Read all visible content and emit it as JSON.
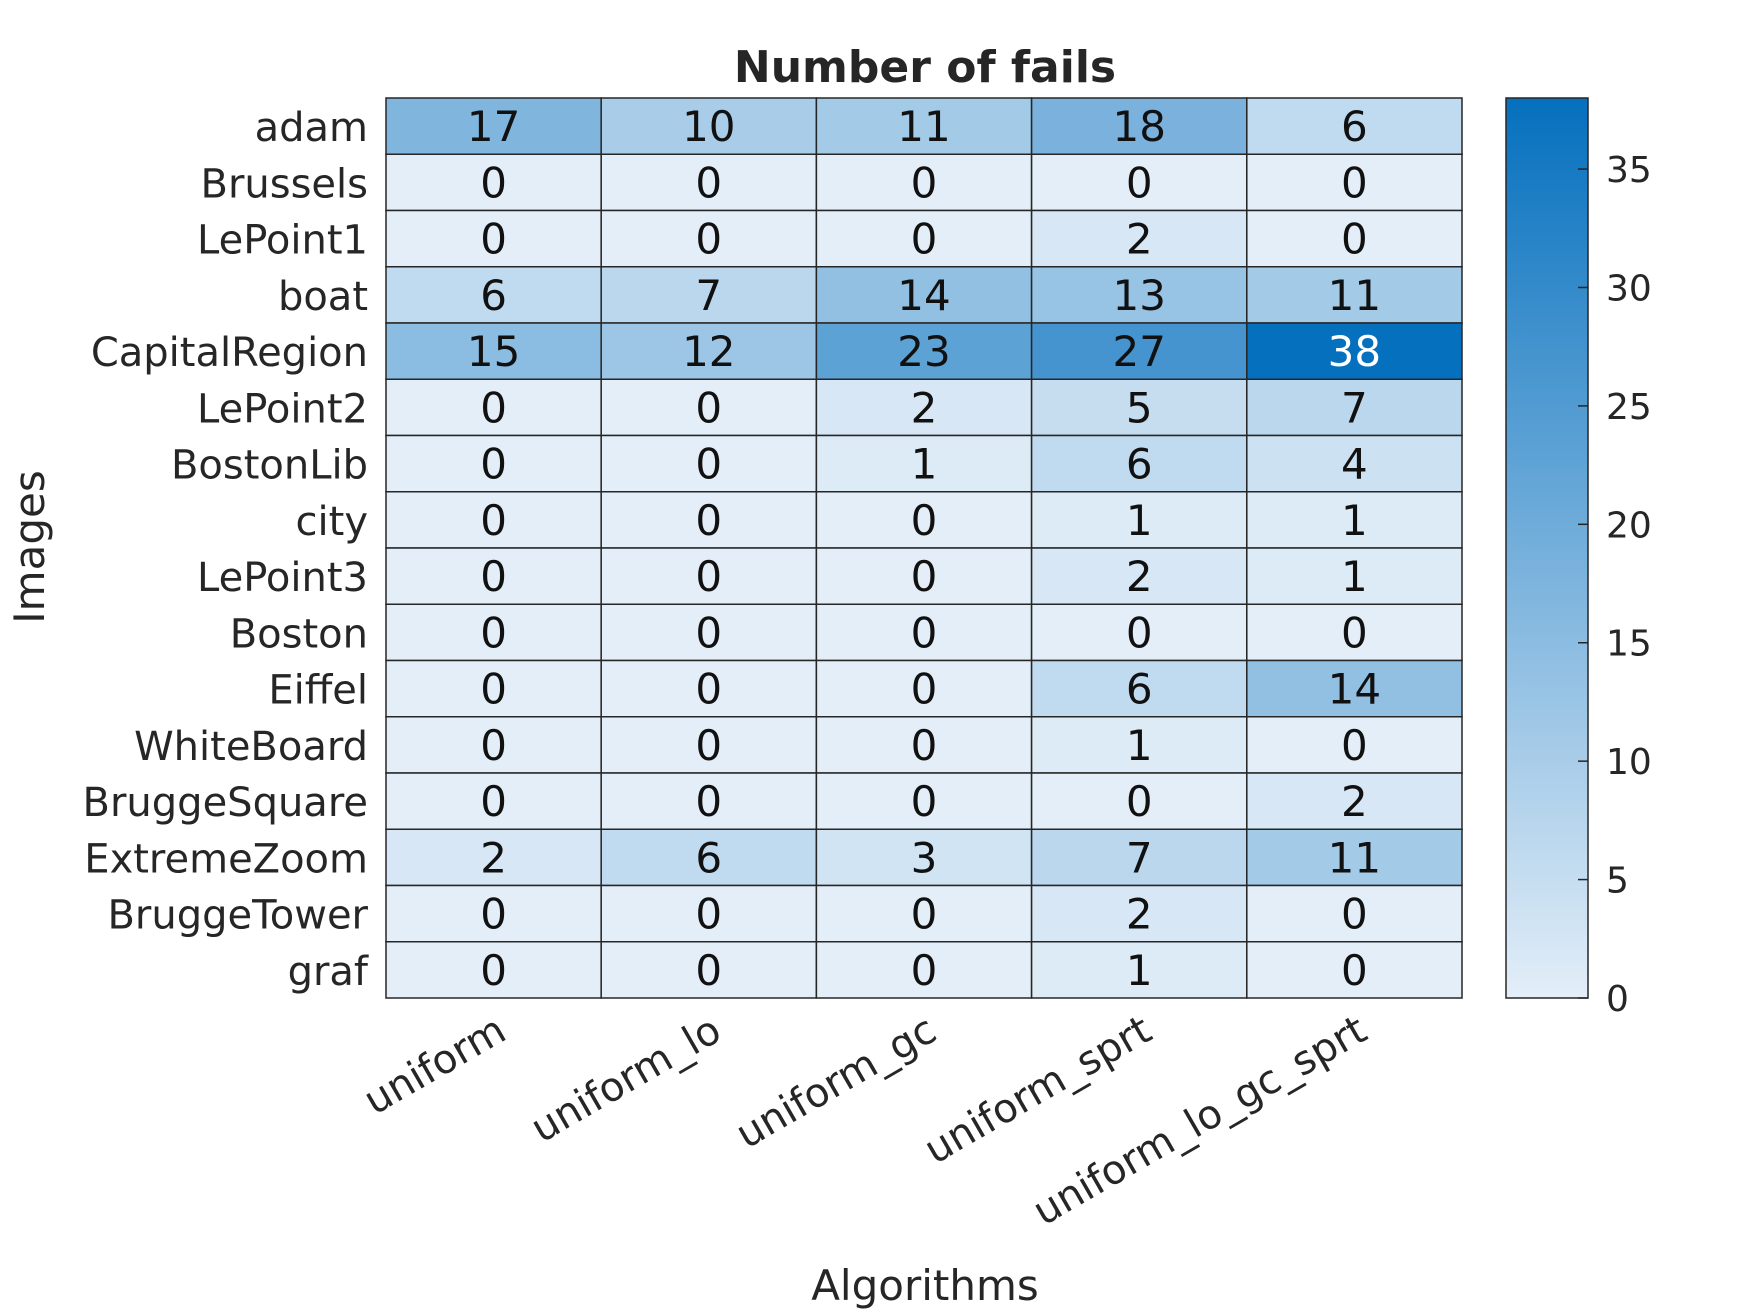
{
  "chart_data": {
    "type": "heatmap",
    "title": "Number of fails",
    "xlabel": "Algorithms",
    "ylabel": "Images",
    "x_categories": [
      "uniform",
      "uniform_lo",
      "uniform_gc",
      "uniform_sprt",
      "uniform_lo_gc_sprt"
    ],
    "y_categories": [
      "adam",
      "Brussels",
      "LePoint1",
      "boat",
      "CapitalRegion",
      "LePoint2",
      "BostonLib",
      "city",
      "LePoint3",
      "Boston",
      "Eiffel",
      "WhiteBoard",
      "BruggeSquare",
      "ExtremeZoom",
      "BruggeTower",
      "graf"
    ],
    "values": [
      [
        17,
        10,
        11,
        18,
        6
      ],
      [
        0,
        0,
        0,
        0,
        0
      ],
      [
        0,
        0,
        0,
        2,
        0
      ],
      [
        6,
        7,
        14,
        13,
        11
      ],
      [
        15,
        12,
        23,
        27,
        38
      ],
      [
        0,
        0,
        2,
        5,
        7
      ],
      [
        0,
        0,
        1,
        6,
        4
      ],
      [
        0,
        0,
        0,
        1,
        1
      ],
      [
        0,
        0,
        0,
        2,
        1
      ],
      [
        0,
        0,
        0,
        0,
        0
      ],
      [
        0,
        0,
        0,
        6,
        14
      ],
      [
        0,
        0,
        0,
        1,
        0
      ],
      [
        0,
        0,
        0,
        0,
        2
      ],
      [
        2,
        6,
        3,
        7,
        11
      ],
      [
        0,
        0,
        0,
        2,
        0
      ],
      [
        0,
        0,
        0,
        1,
        0
      ]
    ],
    "colorbar": {
      "range": [
        0,
        38
      ],
      "ticks": [
        0,
        5,
        10,
        15,
        20,
        25,
        30,
        35
      ],
      "color_low": "#e3eef8",
      "color_high": "#0570be"
    },
    "grid": true,
    "legend": "colorbar-right"
  }
}
